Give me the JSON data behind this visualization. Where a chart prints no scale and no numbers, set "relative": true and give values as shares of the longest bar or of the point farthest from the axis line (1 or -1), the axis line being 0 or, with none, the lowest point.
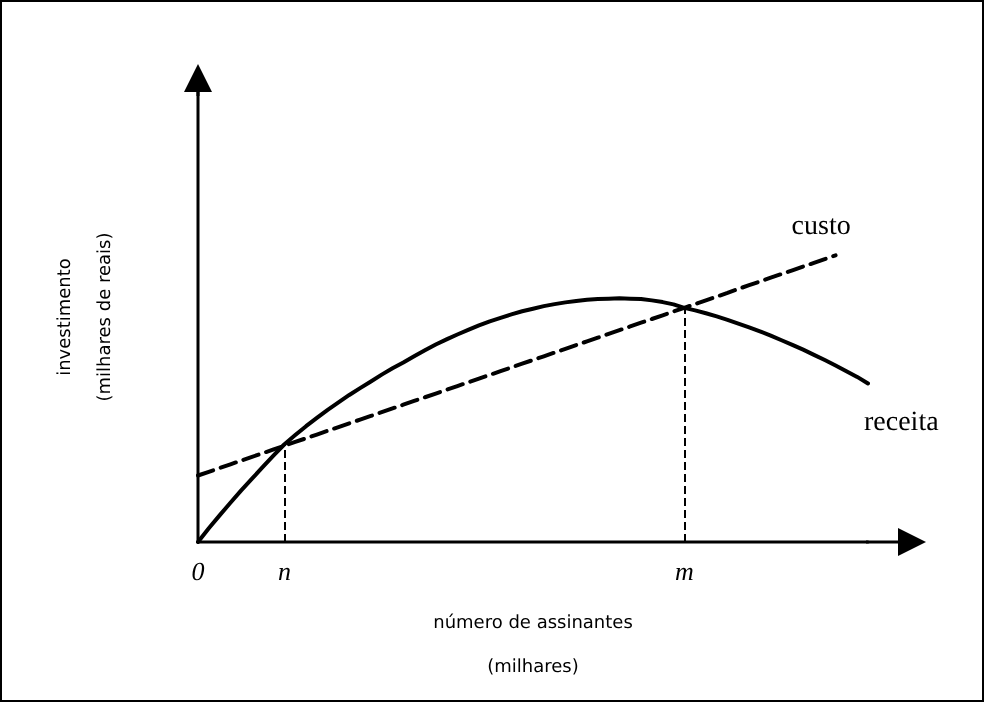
{
  "chart_data": {
    "type": "line",
    "relative": true,
    "xlabel": "número de assinantes\n(milhares)",
    "ylabel": "investimento\n(milhares de reais)",
    "legend": false,
    "grid": false,
    "marker": "none",
    "categories": [
      "0",
      null,
      null,
      null,
      null,
      null,
      null,
      null,
      "n",
      null,
      null,
      null,
      null,
      null,
      null,
      null,
      null,
      null,
      null,
      null,
      null,
      null,
      null,
      null,
      null,
      null,
      null,
      null,
      null,
      null,
      null,
      null,
      null,
      null,
      null,
      null,
      null,
      null,
      null,
      null,
      null,
      null,
      null,
      null,
      null,
      "m",
      null,
      null,
      null,
      null,
      null,
      null,
      null,
      null,
      null,
      null,
      null,
      null,
      null,
      null,
      null,
      null,
      null
    ],
    "series": [
      {
        "name": "custo",
        "color": "#000000",
        "line_style": "dashed",
        "values": [
          0.232,
          0.245,
          0.258,
          0.271,
          0.284,
          0.297,
          0.31,
          0.323,
          0.336,
          0.349,
          0.362,
          0.375,
          0.388,
          0.401,
          0.414,
          0.427,
          0.44,
          0.453,
          0.466,
          0.479,
          0.492,
          0.505,
          0.518,
          0.531,
          0.544,
          0.557,
          0.57,
          0.583,
          0.596,
          0.609,
          0.622,
          0.635,
          0.648,
          0.661,
          0.674,
          0.687,
          0.7,
          0.713,
          0.726,
          0.739,
          0.752,
          0.765,
          0.778,
          0.791,
          0.804,
          0.817,
          0.83,
          0.843,
          0.856,
          0.869,
          0.883,
          0.896,
          0.909,
          0.922,
          0.935,
          0.948,
          0.961,
          0.974,
          0.987,
          1.0,
          null,
          null,
          null
        ]
      },
      {
        "name": "receita",
        "color": "#000000",
        "line_style": "solid",
        "values": [
          0,
          0.048,
          0.093,
          0.137,
          0.18,
          0.221,
          0.262,
          0.302,
          0.341,
          0.373,
          0.404,
          0.433,
          0.461,
          0.487,
          0.513,
          0.537,
          0.56,
          0.584,
          0.606,
          0.626,
          0.648,
          0.669,
          0.689,
          0.707,
          0.724,
          0.74,
          0.756,
          0.77,
          0.782,
          0.794,
          0.805,
          0.814,
          0.823,
          0.83,
          0.836,
          0.841,
          0.845,
          0.848,
          0.849,
          0.85,
          0.849,
          0.848,
          0.843,
          0.837,
          0.829,
          0.817,
          0.808,
          0.798,
          0.787,
          0.775,
          0.762,
          0.749,
          0.735,
          0.72,
          0.704,
          0.688,
          0.671,
          0.653,
          0.635,
          0.616,
          0.596,
          0.576,
          0.553
        ]
      }
    ],
    "ref_lines": [
      {
        "axis": "x",
        "value": "n",
        "line_style": "dashed",
        "color": "#000000"
      },
      {
        "axis": "x",
        "value": "m",
        "line_style": "dashed",
        "color": "#000000"
      }
    ]
  }
}
